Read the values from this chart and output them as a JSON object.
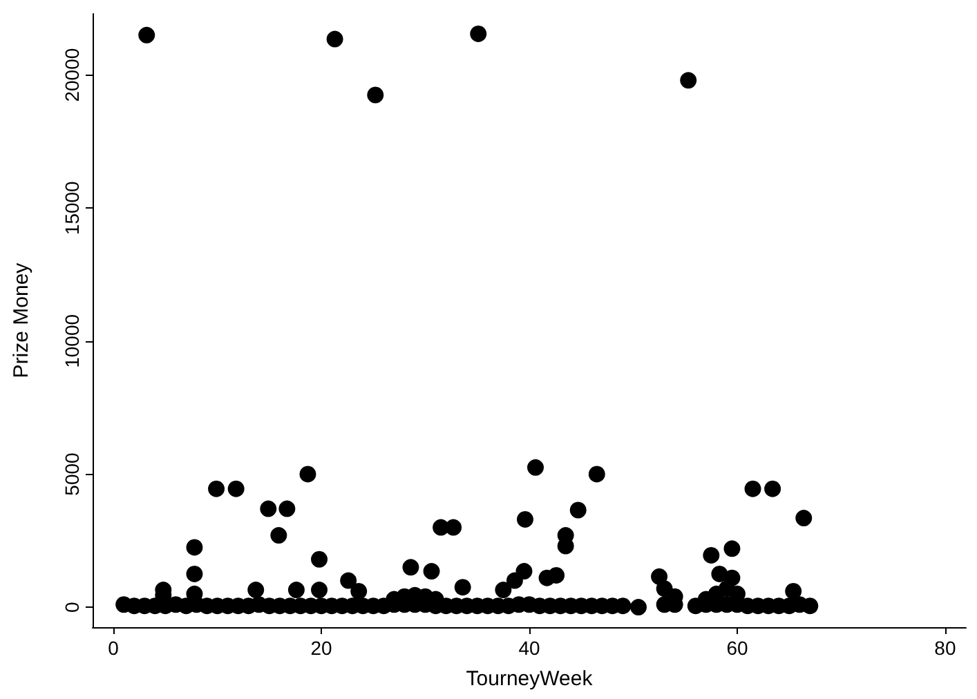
{
  "chart_data": {
    "type": "scatter",
    "xlabel": "TourneyWeek",
    "ylabel": "Prize Money",
    "xlim": [
      -2,
      82
    ],
    "ylim": [
      -750,
      22300
    ],
    "xticks": [
      0,
      20,
      40,
      60,
      80
    ],
    "yticks": [
      0,
      5000,
      10000,
      15000,
      20000
    ],
    "grid": false,
    "marker": "circle",
    "series": [
      {
        "color": "#000000",
        "x": [
          3.2,
          21.3,
          25.2,
          35.1,
          55.3,
          9.9,
          11.8,
          14.9,
          15.9,
          16.7,
          18.7,
          19.8,
          7.8,
          7.8,
          22.6,
          23.6,
          28.6,
          30.6,
          31.5,
          32.7,
          33.6,
          4.8,
          4.8,
          17.6,
          19.8,
          13.7,
          7.8,
          40.6,
          46.5,
          44.7,
          39.6,
          43.5,
          43.5,
          39.5,
          38.6,
          37.5,
          41.7,
          42.6,
          61.5,
          63.4,
          66.4,
          59.5,
          57.5,
          58.3,
          59.5,
          52.5,
          65.4,
          50.5,
          27,
          28,
          29,
          30,
          31,
          53,
          54,
          57,
          58,
          59,
          60,
          1,
          2,
          3,
          4,
          5,
          6,
          7,
          8,
          9,
          10,
          11,
          12,
          13,
          14,
          15,
          16,
          17,
          18,
          19,
          20,
          21,
          22,
          23,
          24,
          25,
          26,
          27,
          28,
          29,
          30,
          31,
          32,
          33,
          34,
          35,
          36,
          37,
          38,
          39,
          40,
          41,
          42,
          43,
          44,
          45,
          46,
          47,
          48,
          49,
          53,
          54,
          56,
          57,
          58,
          59,
          60,
          61,
          62,
          63,
          64,
          65,
          66,
          67
        ],
        "values": [
          21500,
          21350,
          19250,
          21550,
          19800,
          4450,
          4450,
          3700,
          2700,
          3700,
          5000,
          1800,
          2250,
          1250,
          1000,
          600,
          1500,
          1350,
          3000,
          3000,
          750,
          650,
          450,
          650,
          650,
          650,
          500,
          5250,
          5000,
          3650,
          3300,
          2700,
          2300,
          1350,
          1000,
          650,
          1100,
          1200,
          4450,
          4450,
          3350,
          2200,
          1950,
          1250,
          1100,
          1150,
          600,
          0,
          300,
          400,
          450,
          400,
          300,
          700,
          400,
          300,
          500,
          700,
          500,
          100,
          50,
          50,
          50,
          50,
          100,
          50,
          100,
          50,
          50,
          50,
          50,
          50,
          100,
          50,
          50,
          50,
          50,
          50,
          50,
          50,
          50,
          50,
          50,
          50,
          50,
          100,
          100,
          100,
          100,
          50,
          50,
          50,
          50,
          50,
          50,
          50,
          50,
          100,
          100,
          50,
          50,
          50,
          50,
          50,
          50,
          50,
          50,
          50,
          100,
          100,
          50,
          100,
          100,
          100,
          100,
          50,
          50,
          50,
          50,
          50,
          100,
          50
        ]
      }
    ]
  }
}
